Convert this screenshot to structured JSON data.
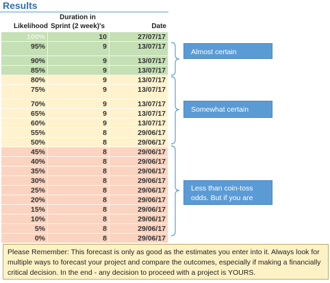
{
  "header": {
    "title": "Results"
  },
  "table": {
    "columns": [
      "Likelihood",
      "Duration in\nSprint (2 week)'s",
      "Date"
    ],
    "rows": [
      [
        "100%",
        "10",
        "27/07/17"
      ],
      [
        "95%",
        "9",
        "13/07/17"
      ],
      [
        "90%",
        "9",
        "13/07/17"
      ],
      [
        "85%",
        "9",
        "13/07/17"
      ],
      [
        "80%",
        "9",
        "13/07/17"
      ],
      [
        "75%",
        "9",
        "13/07/17"
      ],
      [
        "70%",
        "9",
        "13/07/17"
      ],
      [
        "65%",
        "9",
        "13/07/17"
      ],
      [
        "60%",
        "9",
        "13/07/17"
      ],
      [
        "55%",
        "8",
        "29/06/17"
      ],
      [
        "50%",
        "8",
        "29/06/17"
      ],
      [
        "45%",
        "8",
        "29/06/17"
      ],
      [
        "40%",
        "8",
        "29/06/17"
      ],
      [
        "35%",
        "8",
        "29/06/17"
      ],
      [
        "30%",
        "8",
        "29/06/17"
      ],
      [
        "25%",
        "8",
        "29/06/17"
      ],
      [
        "20%",
        "8",
        "29/06/17"
      ],
      [
        "15%",
        "8",
        "29/06/17"
      ],
      [
        "10%",
        "8",
        "29/06/17"
      ],
      [
        "5%",
        "8",
        "29/06/17"
      ],
      [
        "0%",
        "8",
        "29/06/17"
      ]
    ]
  },
  "callouts": [
    "Almost certain",
    "Somewhat certain",
    "Less than coin-toss odds. But if you are game?"
  ],
  "note": "Please Remember: This forecast is only as good as the estimates you enter into it. Always look for multiple ways to forecast your project and compare the outcomes, especially if making a financially critical decision. In the end - any decision to proceed with a project is YOURS."
}
